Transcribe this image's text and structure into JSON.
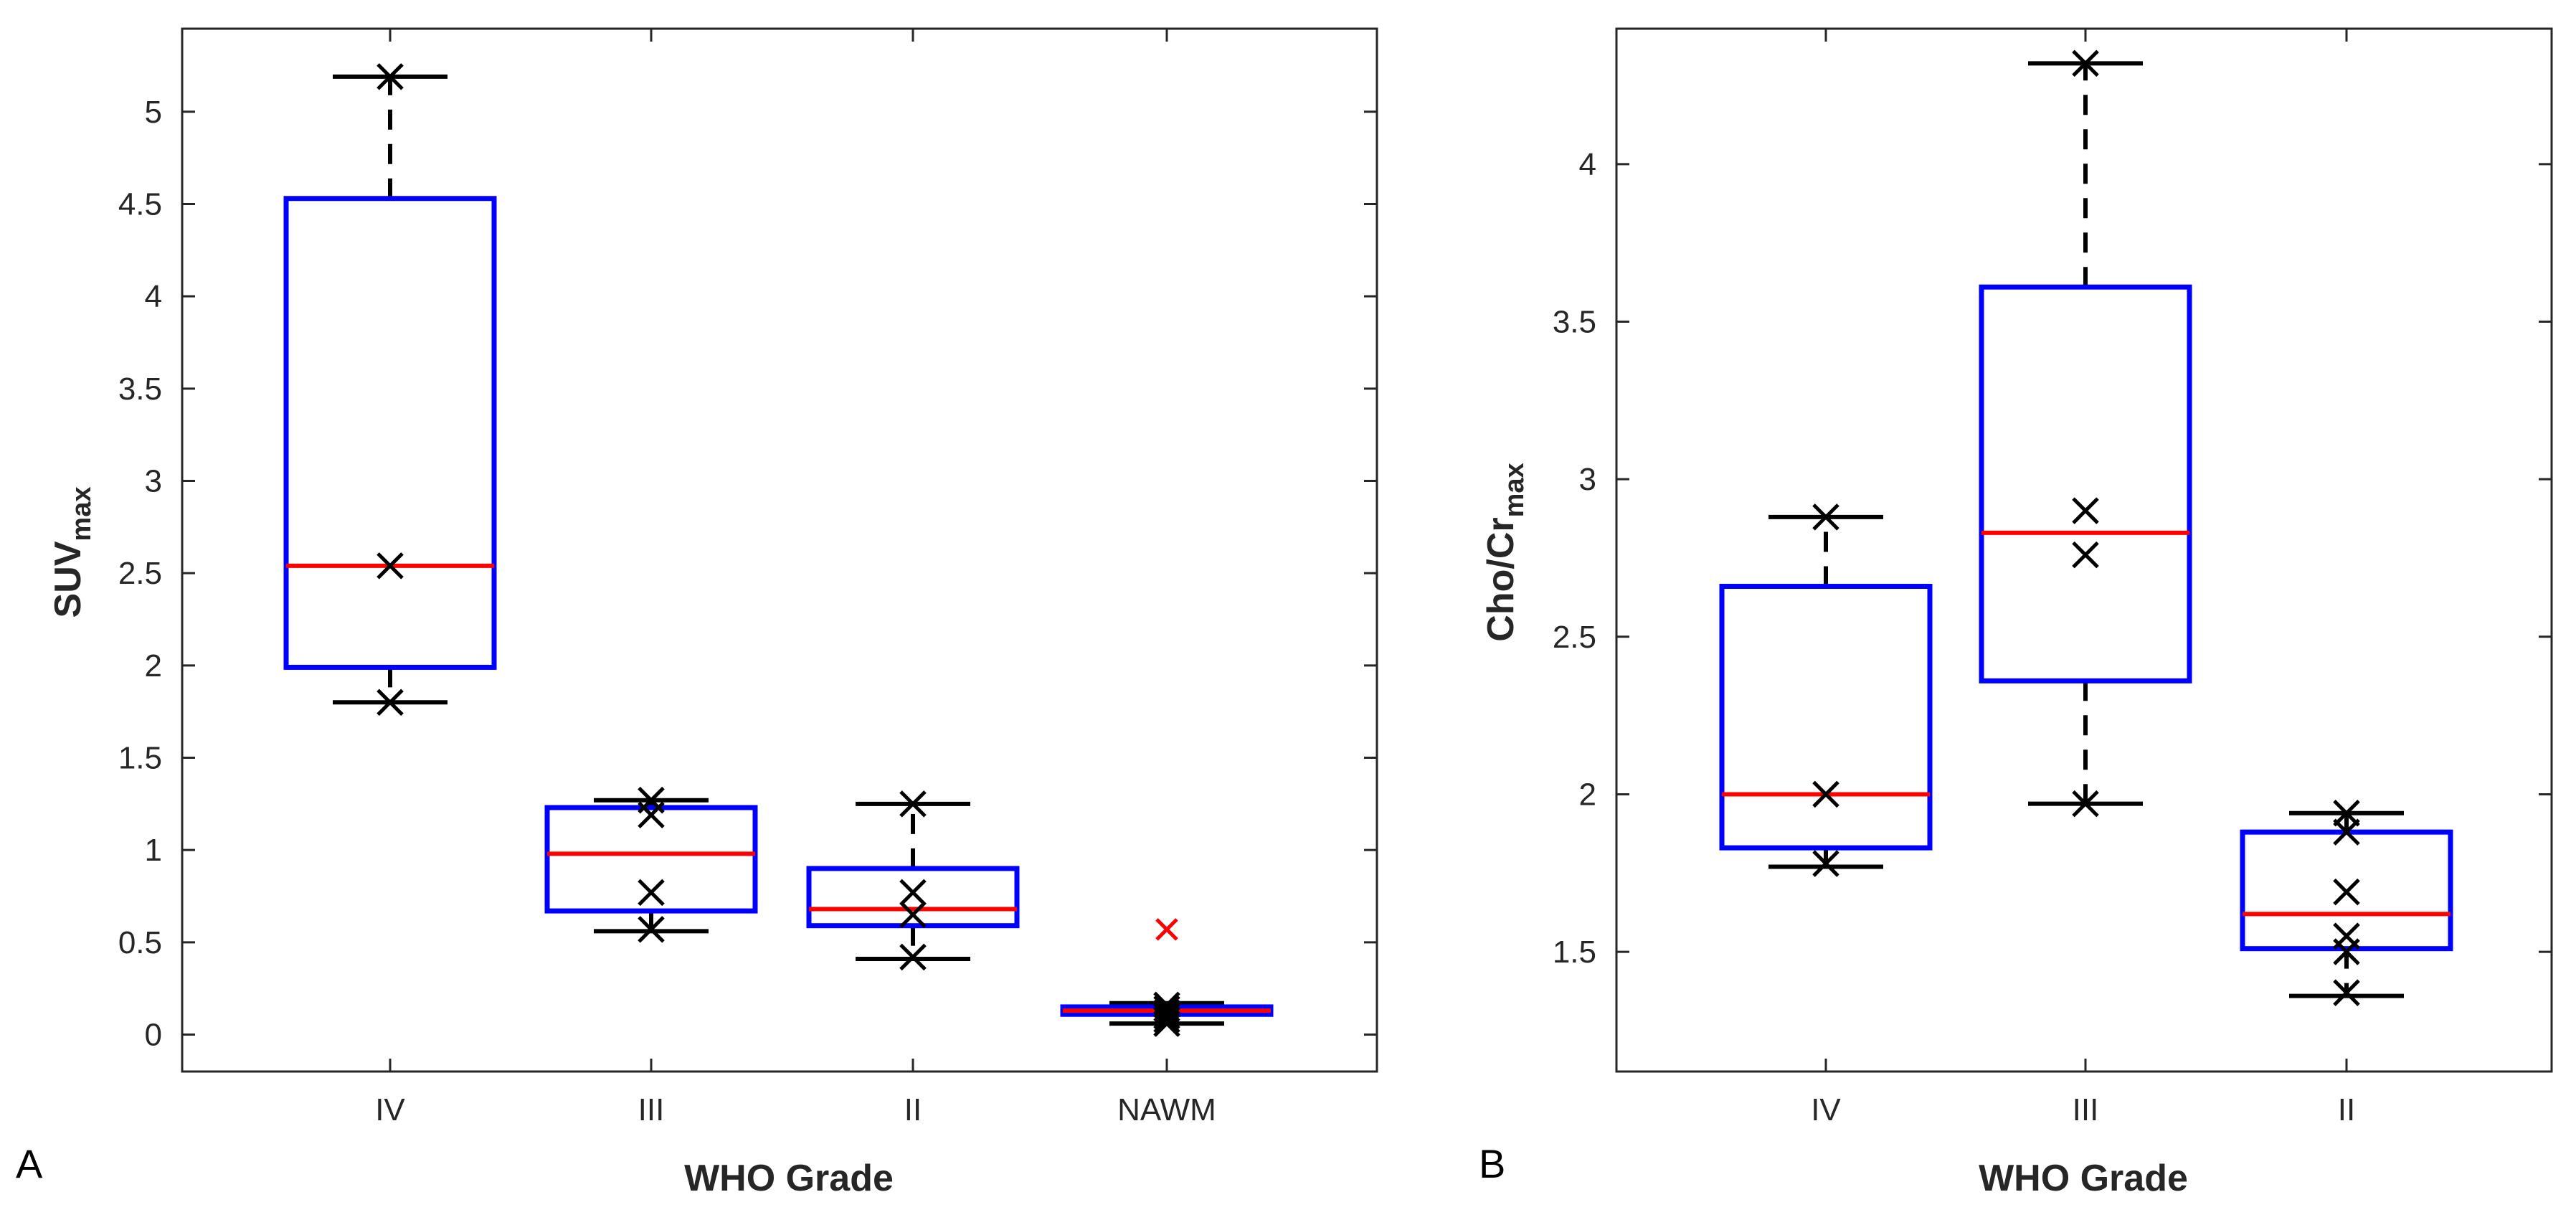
{
  "chart_data": [
    {
      "type": "box",
      "panel_label": "A",
      "title": "",
      "xlabel": "WHO Grade",
      "ylabel_main": "SUV",
      "ylabel_sub": "max",
      "ylim": [
        -0.2,
        5.45
      ],
      "yticks": [
        0,
        0.5,
        1,
        1.5,
        2,
        2.5,
        3,
        3.5,
        4,
        4.5,
        5
      ],
      "ytick_labels": [
        "0",
        "0.5",
        "1",
        "1.5",
        "2",
        "2.5",
        "3",
        "3.5",
        "4",
        "4.5",
        "5"
      ],
      "grid": false,
      "categories": [
        "IV",
        "III",
        "II",
        "NAWM"
      ],
      "boxes": [
        {
          "category": "IV",
          "whisker_low": 1.8,
          "q1": 1.99,
          "median": 2.54,
          "q3": 4.53,
          "whisker_high": 5.19,
          "points": [
            5.19,
            2.54,
            1.8
          ],
          "outliers": []
        },
        {
          "category": "III",
          "whisker_low": 0.56,
          "q1": 0.67,
          "median": 0.98,
          "q3": 1.23,
          "whisker_high": 1.27,
          "points": [
            1.27,
            1.19,
            0.77,
            0.57
          ],
          "outliers": []
        },
        {
          "category": "II",
          "whisker_low": 0.41,
          "q1": 0.59,
          "median": 0.68,
          "q3": 0.9,
          "whisker_high": 1.25,
          "points": [
            1.25,
            0.77,
            0.65,
            0.42
          ],
          "outliers": []
        },
        {
          "category": "NAWM",
          "whisker_low": 0.06,
          "q1": 0.11,
          "median": 0.13,
          "q3": 0.15,
          "whisker_high": 0.17,
          "points": [
            0.16,
            0.14,
            0.12,
            0.1,
            0.08,
            0.06
          ],
          "outliers": [
            0.57
          ]
        }
      ]
    },
    {
      "type": "box",
      "panel_label": "B",
      "title": "",
      "xlabel": "WHO Grade",
      "ylabel_main": "Cho/Cr",
      "ylabel_sub": "max",
      "ylim": [
        1.12,
        4.43
      ],
      "yticks": [
        1.5,
        2,
        2.5,
        3,
        3.5,
        4
      ],
      "ytick_labels": [
        "1.5",
        "2",
        "2.5",
        "3",
        "3.5",
        "4"
      ],
      "grid": false,
      "categories": [
        "IV",
        "III",
        "II"
      ],
      "boxes": [
        {
          "category": "IV",
          "whisker_low": 1.77,
          "q1": 1.83,
          "median": 2.0,
          "q3": 2.66,
          "whisker_high": 2.88,
          "points": [
            2.88,
            2.0,
            1.78
          ],
          "outliers": []
        },
        {
          "category": "III",
          "whisker_low": 1.97,
          "q1": 2.36,
          "median": 2.83,
          "q3": 3.61,
          "whisker_high": 4.32,
          "points": [
            4.32,
            2.9,
            2.76,
            1.97
          ],
          "outliers": []
        },
        {
          "category": "II",
          "whisker_low": 1.36,
          "q1": 1.51,
          "median": 1.62,
          "q3": 1.88,
          "whisker_high": 1.94,
          "points": [
            1.94,
            1.88,
            1.69,
            1.55,
            1.5,
            1.37
          ],
          "outliers": []
        }
      ]
    }
  ],
  "style": {
    "box_color": "#0000ff",
    "median_color": "#ff0000",
    "whisker_color": "#000000",
    "point_color": "#000000",
    "outlier_color": "#ff0000",
    "axis_color": "#262626"
  }
}
